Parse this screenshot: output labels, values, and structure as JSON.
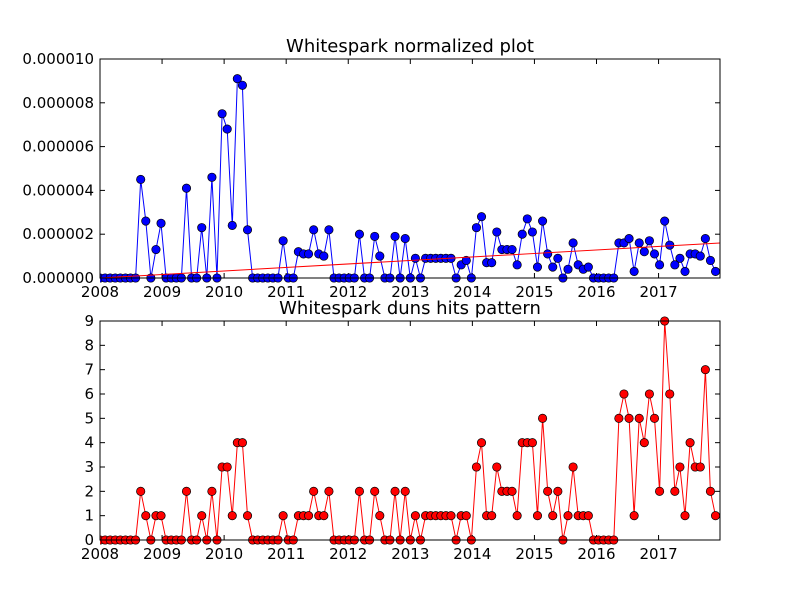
{
  "chart_data": [
    {
      "type": "line",
      "title": "Whitespark normalized plot",
      "xlabel": "",
      "ylabel": "",
      "x_start_year": 2008,
      "x_end_year": 2018,
      "xlim": [
        2008.0,
        2017.99
      ],
      "ylim": [
        0,
        1e-05
      ],
      "xticks": [
        "2008",
        "2009",
        "2010",
        "2011",
        "2012",
        "2013",
        "2014",
        "2015",
        "2016",
        "2017"
      ],
      "yticks": [
        "0.000000",
        "0.000002",
        "0.000004",
        "0.000006",
        "0.000008",
        "0.000010"
      ],
      "series": [
        {
          "name": "normalized",
          "color": "#0000ff",
          "marker_color": "#0000ff",
          "values": [
            0,
            0,
            0,
            0,
            0,
            0,
            0,
            0,
            4.5e-06,
            2.6e-06,
            0,
            1.3e-06,
            2.5e-06,
            0,
            0,
            0,
            0,
            4.1e-06,
            0,
            0,
            2.3e-06,
            0,
            4.6e-06,
            0,
            7.5e-06,
            6.8e-06,
            2.4e-06,
            9.1e-06,
            8.8e-06,
            2.2e-06,
            0,
            0,
            0,
            0,
            0,
            0,
            1.7e-06,
            0,
            0,
            1.2e-06,
            1.1e-06,
            1.1e-06,
            2.2e-06,
            1.1e-06,
            1e-06,
            2.2e-06,
            0,
            0,
            0,
            0,
            0,
            2e-06,
            0,
            0,
            1.9e-06,
            1e-06,
            0,
            0,
            1.9e-06,
            0,
            1.8e-06,
            0,
            9e-07,
            0,
            9e-07,
            9e-07,
            9e-07,
            9e-07,
            9e-07,
            9e-07,
            0,
            6e-07,
            8e-07,
            0,
            2.3e-06,
            2.8e-06,
            7e-07,
            7e-07,
            2.1e-06,
            1.3e-06,
            1.3e-06,
            1.3e-06,
            6e-07,
            2e-06,
            2.7e-06,
            2.1e-06,
            5e-07,
            2.6e-06,
            1.1e-06,
            5e-07,
            9e-07,
            0,
            4e-07,
            1.6e-06,
            6e-07,
            4e-07,
            5e-07,
            0,
            0,
            0,
            0,
            0,
            1.6e-06,
            1.6e-06,
            1.8e-06,
            3e-07,
            1.6e-06,
            1.2e-06,
            1.7e-06,
            1.1e-06,
            6e-07,
            2.6e-06,
            1.5e-06,
            6e-07,
            9e-07,
            3e-07,
            1.1e-06,
            1.1e-06,
            1e-06,
            1.8e-06,
            8e-07,
            3e-07
          ]
        },
        {
          "name": "trend",
          "color": "#ff0000",
          "kind": "linear-fit",
          "start": 0.0,
          "end": 1.6e-06
        }
      ]
    },
    {
      "type": "line",
      "title": "Whitespark duns hits pattern",
      "xlabel": "",
      "ylabel": "",
      "x_start_year": 2008,
      "x_end_year": 2018,
      "xlim": [
        2008.0,
        2017.99
      ],
      "ylim": [
        0,
        9
      ],
      "xticks": [
        "2008",
        "2009",
        "2010",
        "2011",
        "2012",
        "2013",
        "2014",
        "2015",
        "2016",
        "2017"
      ],
      "yticks": [
        "0",
        "1",
        "2",
        "3",
        "4",
        "5",
        "6",
        "7",
        "8",
        "9"
      ],
      "series": [
        {
          "name": "duns hits",
          "color": "#ff0000",
          "marker_color": "#ff0000",
          "values": [
            0,
            0,
            0,
            0,
            0,
            0,
            0,
            0,
            2,
            1,
            0,
            1,
            1,
            0,
            0,
            0,
            0,
            2,
            0,
            0,
            1,
            0,
            2,
            0,
            3,
            3,
            1,
            4,
            4,
            1,
            0,
            0,
            0,
            0,
            0,
            0,
            1,
            0,
            0,
            1,
            1,
            1,
            2,
            1,
            1,
            2,
            0,
            0,
            0,
            0,
            0,
            2,
            0,
            0,
            2,
            1,
            0,
            0,
            2,
            0,
            2,
            0,
            1,
            0,
            1,
            1,
            1,
            1,
            1,
            1,
            0,
            1,
            1,
            0,
            3,
            4,
            1,
            1,
            3,
            2,
            2,
            2,
            1,
            4,
            4,
            4,
            1,
            5,
            2,
            1,
            2,
            0,
            1,
            3,
            1,
            1,
            1,
            0,
            0,
            0,
            0,
            0,
            5,
            6,
            5,
            1,
            5,
            4,
            6,
            5,
            2,
            9,
            6,
            2,
            3,
            1,
            4,
            3,
            3,
            7,
            2,
            1
          ]
        }
      ]
    }
  ]
}
